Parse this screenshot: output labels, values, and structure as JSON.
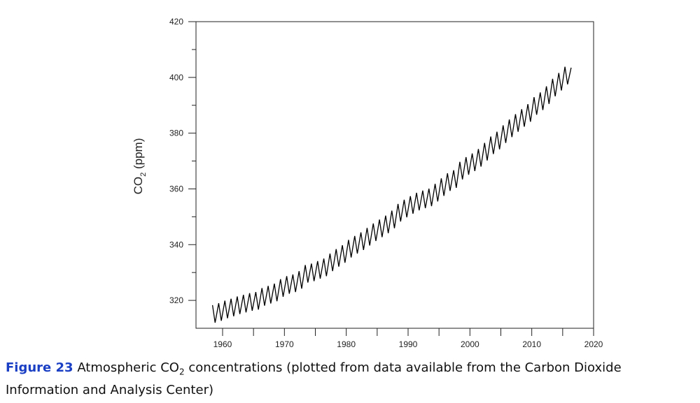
{
  "chart_data": {
    "type": "line",
    "color": "#000000",
    "ylabel": {
      "main": "CO",
      "sub": "2",
      "rest": " (ppm)"
    },
    "xlim": [
      1955.7,
      2020
    ],
    "xticks": [
      1960,
      1970,
      1980,
      1990,
      2000,
      2010,
      2020
    ],
    "xminorticks": [
      1965,
      1975,
      1985,
      1995,
      2005,
      2015
    ],
    "ylim": [
      310,
      420
    ],
    "yticks": [
      320,
      340,
      360,
      380,
      400,
      420
    ],
    "yminorticks": [
      330,
      350,
      370,
      390,
      410
    ],
    "x": [
      1958.37,
      1958.79,
      1959.37,
      1959.79,
      1960.37,
      1960.79,
      1961.37,
      1961.79,
      1962.37,
      1962.79,
      1963.37,
      1963.79,
      1964.37,
      1964.79,
      1965.37,
      1965.79,
      1966.37,
      1966.79,
      1967.37,
      1967.79,
      1968.37,
      1968.79,
      1969.37,
      1969.79,
      1970.37,
      1970.79,
      1971.37,
      1971.79,
      1972.37,
      1972.79,
      1973.37,
      1973.79,
      1974.37,
      1974.79,
      1975.37,
      1975.79,
      1976.37,
      1976.79,
      1977.37,
      1977.79,
      1978.37,
      1978.79,
      1979.37,
      1979.79,
      1980.37,
      1980.79,
      1981.37,
      1981.79,
      1982.37,
      1982.79,
      1983.37,
      1983.79,
      1984.37,
      1984.79,
      1985.37,
      1985.79,
      1986.37,
      1986.79,
      1987.37,
      1987.79,
      1988.37,
      1988.79,
      1989.37,
      1989.79,
      1990.37,
      1990.79,
      1991.37,
      1991.79,
      1992.37,
      1992.79,
      1993.37,
      1993.79,
      1994.37,
      1994.79,
      1995.37,
      1995.79,
      1996.37,
      1996.79,
      1997.37,
      1997.79,
      1998.37,
      1998.79,
      1999.37,
      1999.79,
      2000.37,
      2000.79,
      2001.37,
      2001.79,
      2002.37,
      2002.79,
      2003.37,
      2003.79,
      2004.37,
      2004.79,
      2005.37,
      2005.79,
      2006.37,
      2006.79,
      2007.37,
      2007.79,
      2008.37,
      2008.79,
      2009.37,
      2009.79,
      2010.37,
      2010.79,
      2011.37,
      2011.79,
      2012.37,
      2012.79,
      2013.37,
      2013.79,
      2014.37,
      2014.79,
      2015.37,
      2015.79,
      2016.37
    ],
    "values": [
      318.3,
      312.0,
      319.0,
      312.7,
      319.9,
      313.6,
      320.6,
      314.3,
      321.4,
      315.1,
      322.0,
      315.7,
      322.6,
      316.3,
      323.0,
      316.7,
      324.4,
      318.1,
      325.2,
      318.9,
      326.0,
      319.7,
      327.6,
      321.3,
      328.7,
      322.4,
      329.3,
      323.0,
      330.5,
      324.2,
      332.7,
      326.4,
      333.2,
      326.9,
      334.1,
      327.8,
      335.0,
      328.7,
      336.8,
      330.5,
      338.4,
      332.1,
      339.8,
      333.5,
      341.7,
      335.4,
      343.1,
      336.8,
      344.4,
      338.1,
      346.0,
      339.7,
      347.6,
      341.3,
      349.0,
      342.7,
      350.4,
      344.1,
      352.2,
      345.9,
      354.6,
      348.3,
      356.1,
      349.8,
      357.4,
      351.1,
      358.6,
      352.3,
      359.4,
      353.1,
      360.1,
      353.8,
      361.8,
      355.5,
      363.8,
      357.5,
      365.6,
      359.3,
      366.7,
      360.4,
      369.7,
      363.4,
      371.4,
      365.1,
      372.7,
      366.4,
      374.3,
      368.0,
      376.5,
      370.2,
      378.8,
      372.5,
      380.5,
      374.2,
      382.8,
      376.5,
      384.9,
      378.6,
      386.8,
      380.5,
      388.6,
      382.3,
      390.4,
      384.1,
      392.9,
      386.6,
      394.6,
      388.3,
      396.8,
      390.5,
      399.5,
      393.2,
      401.6,
      395.3,
      403.8,
      397.5,
      403.5
    ]
  },
  "caption": {
    "label": "Figure 23",
    "text_before": "Atmospheric CO",
    "sub": "2",
    "text_after": " concentrations (plotted from data available from the Carbon Dioxide Information and Analysis Center)"
  }
}
